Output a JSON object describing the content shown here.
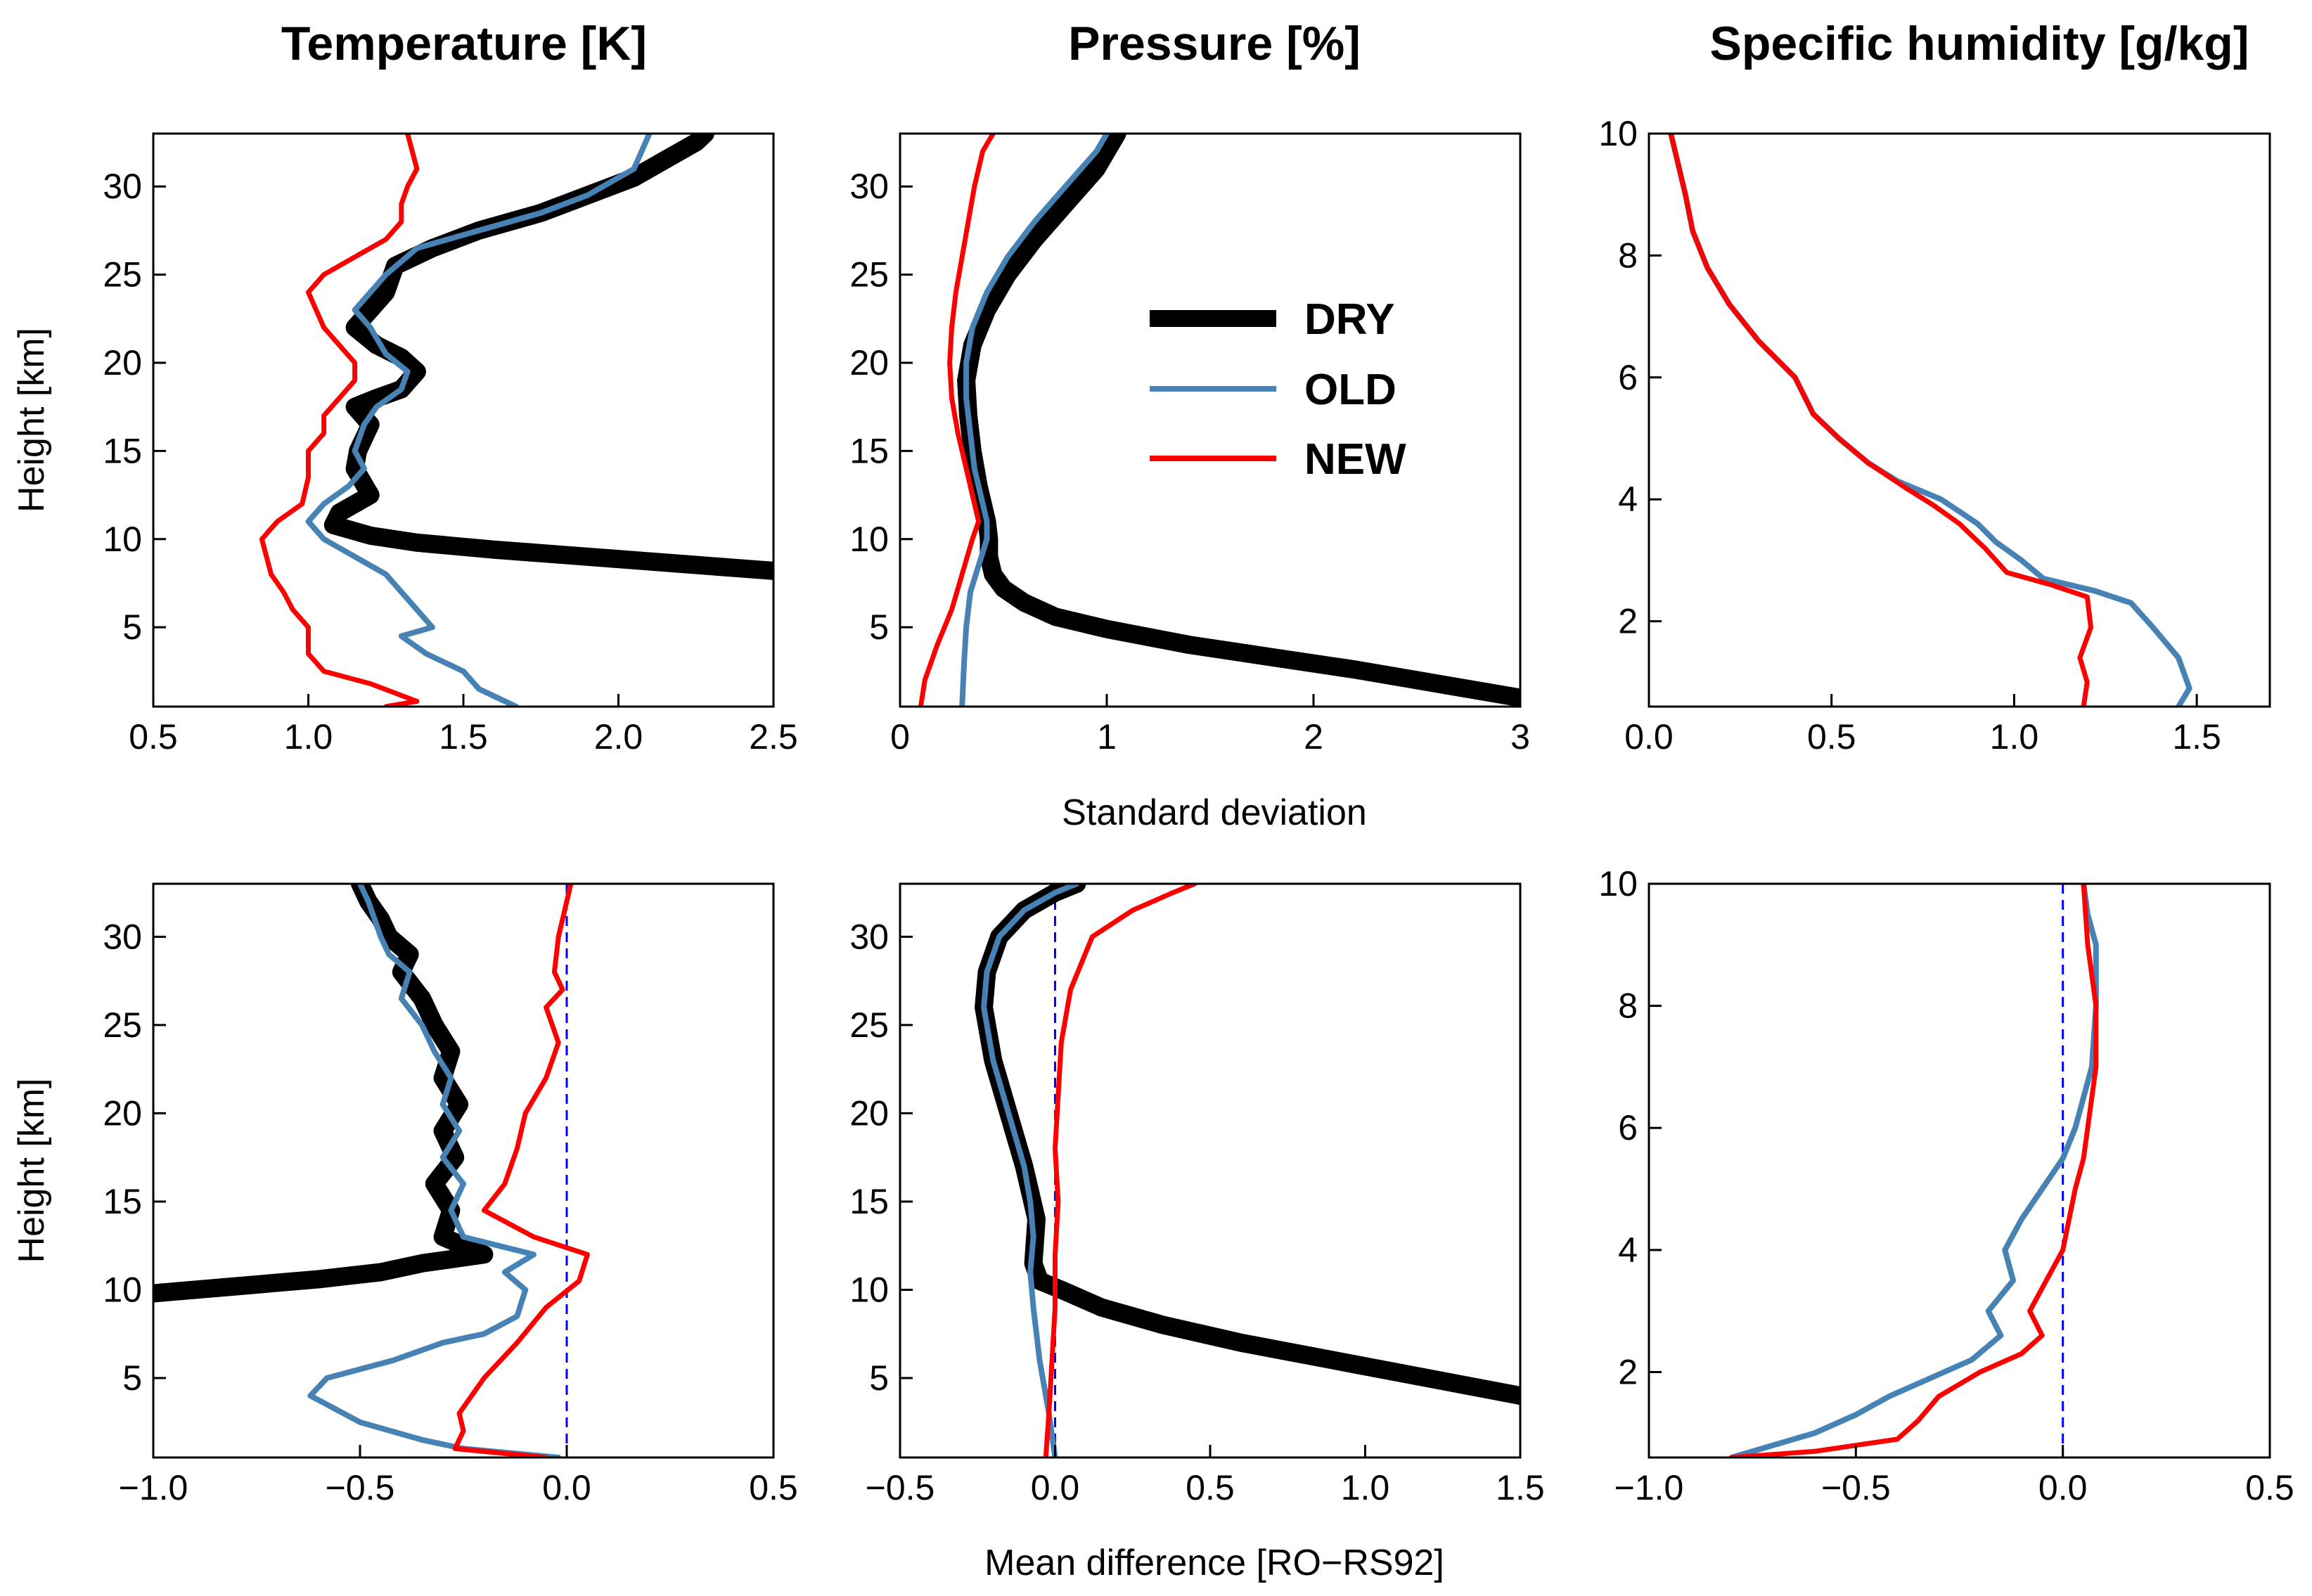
{
  "column_titles": [
    "Temperature [K]",
    "Pressure [%]",
    "Specific humidity [g/kg]"
  ],
  "row_xlabels": [
    "Standard deviation",
    "Mean difference [RO−RS92]"
  ],
  "legend": [
    {
      "name": "DRY",
      "color": "#000000"
    },
    {
      "name": "OLD",
      "color": "#4682b4"
    },
    {
      "name": "NEW",
      "color": "#ff0000"
    }
  ],
  "chart_data": [
    {
      "id": "std-temperature",
      "type": "line",
      "xlim": [
        0.5,
        2.5
      ],
      "ylim": [
        0.5,
        33
      ],
      "xticks": [
        0.5,
        1.0,
        1.5,
        2.0,
        2.5
      ],
      "xtick_labels": [
        "0.5",
        "1.0",
        "1.5",
        "2.0",
        "2.5"
      ],
      "yticks": [
        5,
        10,
        15,
        20,
        25,
        30
      ],
      "ytick_labels": [
        "5",
        "10",
        "15",
        "20",
        "25",
        "30"
      ],
      "ylabel": "Height [km]",
      "zero_line": false,
      "series": [
        {
          "name": "DRY",
          "x": [
            2.5,
            2.2,
            1.9,
            1.6,
            1.35,
            1.2,
            1.08,
            1.1,
            1.2,
            1.15,
            1.16,
            1.2,
            1.15,
            1.22,
            1.3,
            1.35,
            1.3,
            1.22,
            1.15,
            1.2,
            1.25,
            1.28,
            1.4,
            1.55,
            1.75,
            1.9,
            2.05,
            2.15,
            2.25,
            2.28
          ],
          "y": [
            8.2,
            8.6,
            9.0,
            9.4,
            9.8,
            10.2,
            10.8,
            11.5,
            12.5,
            14,
            15,
            16.5,
            17.5,
            18,
            18.5,
            19.5,
            20.3,
            21,
            22,
            23,
            24,
            25.5,
            26.5,
            27.5,
            28.5,
            29.5,
            30.5,
            31.5,
            32.5,
            33
          ]
        },
        {
          "name": "OLD",
          "x": [
            1.67,
            1.55,
            1.5,
            1.38,
            1.3,
            1.4,
            1.35,
            1.3,
            1.25,
            1.15,
            1.05,
            1.0,
            1.05,
            1.13,
            1.18,
            1.15,
            1.18,
            1.22,
            1.3,
            1.32,
            1.25,
            1.2,
            1.15,
            1.25,
            1.35,
            1.55,
            1.75,
            1.9,
            2.05,
            2.1
          ],
          "y": [
            0.5,
            1.5,
            2.5,
            3.5,
            4.5,
            5,
            6,
            7,
            8,
            9,
            10,
            11,
            12,
            13,
            14,
            15,
            16.5,
            17.5,
            18.5,
            19.5,
            20.5,
            22,
            23,
            25,
            26.5,
            27.5,
            28.5,
            29.5,
            31,
            33
          ]
        },
        {
          "name": "NEW",
          "x": [
            1.25,
            1.35,
            1.2,
            1.05,
            1.0,
            1.0,
            0.95,
            0.92,
            0.88,
            0.85,
            0.9,
            0.98,
            1.0,
            1.0,
            1.05,
            1.05,
            1.1,
            1.15,
            1.15,
            1.1,
            1.05,
            1.0,
            1.05,
            1.15,
            1.25,
            1.3,
            1.3,
            1.32,
            1.35,
            1.32
          ],
          "y": [
            0.5,
            0.8,
            1.8,
            2.5,
            3.5,
            5,
            6,
            7,
            8,
            10,
            11,
            12,
            13.5,
            15,
            16,
            17,
            18,
            19,
            20,
            21,
            22,
            24,
            25,
            26,
            27,
            28,
            29,
            30,
            31,
            33
          ]
        }
      ]
    },
    {
      "id": "std-pressure",
      "type": "line",
      "xlim": [
        0,
        3
      ],
      "ylim": [
        0.5,
        33
      ],
      "xticks": [
        0,
        1,
        2,
        3
      ],
      "xtick_labels": [
        "0",
        "1",
        "2",
        "3"
      ],
      "yticks": [
        5,
        10,
        15,
        20,
        25,
        30
      ],
      "ytick_labels": [
        "5",
        "10",
        "15",
        "20",
        "25",
        "30"
      ],
      "ylabel": "",
      "zero_line": false,
      "series": [
        {
          "name": "DRY",
          "x": [
            3.0,
            2.6,
            2.2,
            1.8,
            1.4,
            1.0,
            0.75,
            0.6,
            0.5,
            0.45,
            0.43,
            0.43,
            0.42,
            0.38,
            0.35,
            0.33,
            0.32,
            0.35,
            0.42,
            0.52,
            0.65,
            0.8,
            0.95,
            1.05
          ],
          "y": [
            1.0,
            1.8,
            2.6,
            3.3,
            4.0,
            4.9,
            5.6,
            6.4,
            7.2,
            8.0,
            9.0,
            10.0,
            11.0,
            13,
            15,
            17,
            19,
            21,
            23,
            25,
            27,
            29,
            31,
            33
          ]
        },
        {
          "name": "OLD",
          "x": [
            0.3,
            0.31,
            0.32,
            0.34,
            0.38,
            0.42,
            0.42,
            0.4,
            0.36,
            0.34,
            0.32,
            0.32,
            0.35,
            0.42,
            0.52,
            0.65,
            0.8,
            0.95,
            1.0
          ],
          "y": [
            0.5,
            3,
            5,
            7,
            8.5,
            10,
            11,
            12,
            14,
            16,
            18,
            20,
            22,
            24,
            26,
            28,
            30,
            32,
            33
          ]
        },
        {
          "name": "NEW",
          "x": [
            0.1,
            0.12,
            0.18,
            0.25,
            0.3,
            0.35,
            0.38,
            0.36,
            0.32,
            0.28,
            0.25,
            0.24,
            0.25,
            0.27,
            0.3,
            0.33,
            0.36,
            0.4,
            0.45
          ],
          "y": [
            0.5,
            2,
            4,
            6,
            8,
            10,
            11,
            12,
            14,
            16,
            18,
            20,
            22,
            24,
            26,
            28,
            30,
            32,
            33
          ]
        }
      ]
    },
    {
      "id": "std-humidity",
      "type": "line",
      "xlim": [
        0,
        1.7
      ],
      "ylim": [
        0.6,
        10
      ],
      "xticks": [
        0,
        0.5,
        1.0,
        1.5
      ],
      "xtick_labels": [
        "0.0",
        "0.5",
        "1.0",
        "1.5"
      ],
      "yticks": [
        2,
        4,
        6,
        8,
        10
      ],
      "ytick_labels": [
        "2",
        "4",
        "6",
        "8",
        "10"
      ],
      "ylabel": "",
      "zero_line": false,
      "series": [
        {
          "name": "OLD",
          "x": [
            1.45,
            1.48,
            1.45,
            1.38,
            1.32,
            1.22,
            1.08,
            1.02,
            0.95,
            0.9,
            0.8,
            0.68,
            0.6,
            0.52,
            0.45,
            0.4,
            0.3,
            0.22,
            0.16,
            0.12,
            0.1,
            0.08,
            0.06
          ],
          "y": [
            0.6,
            0.9,
            1.4,
            1.9,
            2.3,
            2.5,
            2.7,
            3.0,
            3.3,
            3.6,
            4.0,
            4.3,
            4.6,
            5.0,
            5.4,
            6.0,
            6.6,
            7.2,
            7.8,
            8.4,
            9.0,
            9.5,
            10
          ]
        },
        {
          "name": "NEW",
          "x": [
            1.19,
            1.2,
            1.18,
            1.21,
            1.2,
            1.1,
            0.98,
            0.92,
            0.85,
            0.78,
            0.7,
            0.6,
            0.52,
            0.45,
            0.4,
            0.3,
            0.22,
            0.16,
            0.12,
            0.1,
            0.08,
            0.06
          ],
          "y": [
            0.6,
            1.0,
            1.4,
            1.9,
            2.4,
            2.6,
            2.8,
            3.2,
            3.6,
            3.9,
            4.2,
            4.6,
            5.0,
            5.4,
            6.0,
            6.6,
            7.2,
            7.8,
            8.4,
            9.0,
            9.5,
            10
          ]
        }
      ]
    },
    {
      "id": "mean-temperature",
      "type": "line",
      "xlim": [
        -1.0,
        0.5
      ],
      "ylim": [
        0.5,
        33
      ],
      "xticks": [
        -1.0,
        -0.5,
        0.0,
        0.5
      ],
      "xtick_labels": [
        "−1.0",
        "−0.5",
        "0.0",
        "0.5"
      ],
      "yticks": [
        5,
        10,
        15,
        20,
        25,
        30
      ],
      "ytick_labels": [
        "5",
        "10",
        "15",
        "20",
        "25",
        "30"
      ],
      "ylabel": "Height [km]",
      "zero_line": true,
      "series": [
        {
          "name": "DRY",
          "x": [
            -1.0,
            -0.8,
            -0.6,
            -0.45,
            -0.35,
            -0.2,
            -0.3,
            -0.28,
            -0.32,
            -0.27,
            -0.3,
            -0.26,
            -0.3,
            -0.28,
            -0.32,
            -0.35,
            -0.4,
            -0.38,
            -0.43,
            -0.45,
            -0.48,
            -0.5
          ],
          "y": [
            9.8,
            10.2,
            10.6,
            11.0,
            11.5,
            12.0,
            13,
            14.5,
            16,
            17.5,
            19,
            20.5,
            22,
            23.5,
            25,
            26.5,
            28,
            29,
            30,
            31,
            32,
            33
          ]
        },
        {
          "name": "OLD",
          "x": [
            -0.02,
            -0.25,
            -0.35,
            -0.5,
            -0.62,
            -0.58,
            -0.42,
            -0.3,
            -0.2,
            -0.12,
            -0.1,
            -0.15,
            -0.08,
            -0.25,
            -0.28,
            -0.25,
            -0.3,
            -0.26,
            -0.3,
            -0.28,
            -0.32,
            -0.35,
            -0.4,
            -0.38,
            -0.43,
            -0.45,
            -0.48,
            -0.5
          ],
          "y": [
            0.5,
            1.0,
            1.5,
            2.5,
            4.0,
            5.0,
            6.0,
            7.0,
            7.5,
            8.5,
            10,
            11,
            12,
            13,
            14.5,
            16,
            17.5,
            19,
            20.5,
            22,
            23.5,
            25,
            26.5,
            28,
            29,
            30,
            32,
            33
          ]
        },
        {
          "name": "NEW",
          "x": [
            -0.05,
            -0.27,
            -0.25,
            -0.26,
            -0.2,
            -0.12,
            -0.05,
            0.03,
            0.05,
            -0.08,
            -0.2,
            -0.15,
            -0.12,
            -0.1,
            -0.05,
            -0.02,
            -0.05,
            -0.01,
            -0.03,
            -0.02,
            0.0,
            0.01
          ],
          "y": [
            0.5,
            1.0,
            2.0,
            3.0,
            5.0,
            7.0,
            9.0,
            10.5,
            12,
            13,
            14.5,
            16,
            18,
            20,
            22,
            24,
            26,
            27,
            28,
            30,
            32,
            33
          ]
        }
      ]
    },
    {
      "id": "mean-pressure",
      "type": "line",
      "xlim": [
        -0.5,
        1.5
      ],
      "ylim": [
        0.5,
        33
      ],
      "xticks": [
        -0.5,
        0.0,
        0.5,
        1.0,
        1.5
      ],
      "xtick_labels": [
        "−0.5",
        "0.0",
        "0.5",
        "1.0",
        "1.5"
      ],
      "yticks": [
        5,
        10,
        15,
        20,
        25,
        30
      ],
      "ytick_labels": [
        "5",
        "10",
        "15",
        "20",
        "25",
        "30"
      ],
      "ylabel": "",
      "zero_line": true,
      "series": [
        {
          "name": "DRY",
          "x": [
            1.5,
            1.2,
            0.9,
            0.6,
            0.35,
            0.15,
            0.02,
            -0.05,
            -0.07,
            -0.06,
            -0.1,
            -0.15,
            -0.2,
            -0.23,
            -0.22,
            -0.18,
            -0.1,
            0.0,
            0.07
          ],
          "y": [
            4.0,
            5.0,
            6.0,
            7.0,
            8.0,
            9.0,
            10.0,
            10.5,
            11.5,
            14,
            17,
            20,
            23,
            26,
            28,
            30,
            31.5,
            32.5,
            33
          ]
        },
        {
          "name": "OLD",
          "x": [
            0.0,
            -0.02,
            -0.05,
            -0.07,
            -0.08,
            -0.07,
            -0.08,
            -0.1,
            -0.15,
            -0.2,
            -0.23,
            -0.22,
            -0.18,
            -0.1,
            0.0,
            0.07
          ],
          "y": [
            0.5,
            3,
            6,
            9,
            11,
            13,
            15,
            17,
            20,
            23,
            26,
            28,
            30,
            31.5,
            32.5,
            33
          ]
        },
        {
          "name": "NEW",
          "x": [
            -0.03,
            -0.02,
            -0.01,
            0.0,
            0.0,
            0.01,
            0.0,
            0.01,
            0.02,
            0.05,
            0.12,
            0.25,
            0.38,
            0.45
          ],
          "y": [
            0.5,
            3,
            6,
            9,
            12,
            15,
            18,
            21,
            24,
            27,
            30,
            31.5,
            32.5,
            33
          ]
        }
      ]
    },
    {
      "id": "mean-humidity",
      "type": "line",
      "xlim": [
        -1.0,
        0.5
      ],
      "ylim": [
        0.6,
        10
      ],
      "xticks": [
        -1.0,
        -0.5,
        0.0,
        0.5
      ],
      "xtick_labels": [
        "−1.0",
        "−0.5",
        "0.0",
        "0.5"
      ],
      "yticks": [
        2,
        4,
        6,
        8,
        10
      ],
      "ytick_labels": [
        "2",
        "4",
        "6",
        "8",
        "10"
      ],
      "ylabel": "",
      "zero_line": true,
      "series": [
        {
          "name": "OLD",
          "x": [
            -0.8,
            -0.7,
            -0.6,
            -0.5,
            -0.42,
            -0.32,
            -0.22,
            -0.15,
            -0.18,
            -0.12,
            -0.14,
            -0.1,
            -0.05,
            0.0,
            0.03,
            0.05,
            0.07,
            0.08,
            0.08,
            0.06,
            0.05
          ],
          "y": [
            0.6,
            0.8,
            1.0,
            1.3,
            1.6,
            1.9,
            2.2,
            2.6,
            3.0,
            3.5,
            4.0,
            4.5,
            5.0,
            5.5,
            6.0,
            6.5,
            7.0,
            8.0,
            9.0,
            9.5,
            10
          ]
        },
        {
          "name": "NEW",
          "x": [
            -0.8,
            -0.6,
            -0.4,
            -0.35,
            -0.3,
            -0.2,
            -0.1,
            -0.05,
            -0.08,
            -0.04,
            0.0,
            0.03,
            0.05,
            0.06,
            0.07,
            0.08,
            0.08,
            0.06,
            0.05
          ],
          "y": [
            0.6,
            0.7,
            0.9,
            1.2,
            1.6,
            2.0,
            2.3,
            2.6,
            3.0,
            3.5,
            4.0,
            5.0,
            5.5,
            6.0,
            6.5,
            7.0,
            8.0,
            9.0,
            10
          ]
        }
      ]
    }
  ]
}
